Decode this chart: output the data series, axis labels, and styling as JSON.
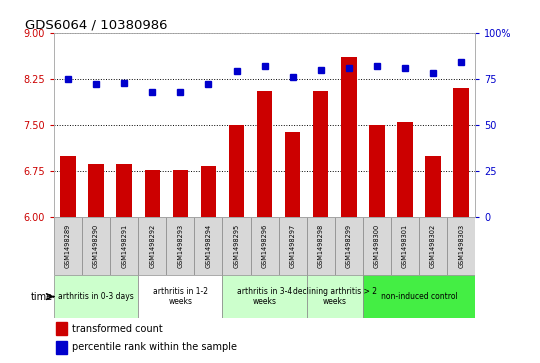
{
  "title": "GDS6064 / 10380986",
  "samples": [
    "GSM1498289",
    "GSM1498290",
    "GSM1498291",
    "GSM1498292",
    "GSM1498293",
    "GSM1498294",
    "GSM1498295",
    "GSM1498296",
    "GSM1498297",
    "GSM1498298",
    "GSM1498299",
    "GSM1498300",
    "GSM1498301",
    "GSM1498302",
    "GSM1498303"
  ],
  "bar_values": [
    7.0,
    6.87,
    6.87,
    6.77,
    6.77,
    6.83,
    7.5,
    8.05,
    7.38,
    8.05,
    8.6,
    7.5,
    7.55,
    7.0,
    8.1
  ],
  "dot_values": [
    75,
    72,
    73,
    68,
    68,
    72,
    79,
    82,
    76,
    80,
    81,
    82,
    81,
    78,
    84
  ],
  "ylim_left": [
    6,
    9
  ],
  "ylim_right": [
    0,
    100
  ],
  "yticks_left": [
    6,
    6.75,
    7.5,
    8.25,
    9
  ],
  "yticks_right": [
    0,
    25,
    50,
    75,
    100
  ],
  "bar_color": "#cc0000",
  "dot_color": "#0000cc",
  "groups": [
    {
      "label": "arthritis in 0-3 days",
      "start": 0,
      "end": 3,
      "color": "#ccffcc"
    },
    {
      "label": "arthritis in 1-2\nweeks",
      "start": 3,
      "end": 6,
      "color": "#ffffff"
    },
    {
      "label": "arthritis in 3-4\nweeks",
      "start": 6,
      "end": 9,
      "color": "#ccffcc"
    },
    {
      "label": "declining arthritis > 2\nweeks",
      "start": 9,
      "end": 11,
      "color": "#ccffcc"
    },
    {
      "label": "non-induced control",
      "start": 11,
      "end": 15,
      "color": "#44ee44"
    }
  ],
  "legend_bar_label": "transformed count",
  "legend_dot_label": "percentile rank within the sample",
  "tick_color_left": "#cc0000",
  "tick_color_right": "#0000cc",
  "ybase": 6
}
